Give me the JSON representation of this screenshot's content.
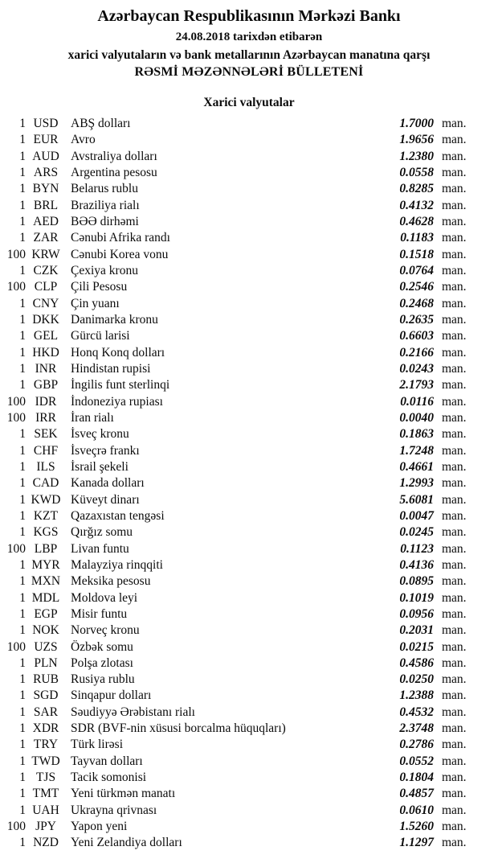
{
  "header": {
    "title": "Azərbaycan Respublikasının Mərkəzi Bankı",
    "date_line": "24.08.2018 tarixdən etibarən",
    "subtitle": "xarici valyutaların və bank metallarının Azərbaycan manatına qarşı",
    "bulletin_title": "RƏSMİ MƏZƏNNƏLƏRİ BÜLLETENİ"
  },
  "section": {
    "title": "Xarici valyutalar"
  },
  "unit_label": "man.",
  "rates": [
    {
      "nominal": "1",
      "code": "USD",
      "name": "ABŞ dolları",
      "rate": "1.7000"
    },
    {
      "nominal": "1",
      "code": "EUR",
      "name": "Avro",
      "rate": "1.9656"
    },
    {
      "nominal": "1",
      "code": "AUD",
      "name": "Avstraliya dolları",
      "rate": "1.2380"
    },
    {
      "nominal": "1",
      "code": "ARS",
      "name": "Argentina pesosu",
      "rate": "0.0558"
    },
    {
      "nominal": "1",
      "code": "BYN",
      "name": "Belarus rublu",
      "rate": "0.8285"
    },
    {
      "nominal": "1",
      "code": "BRL",
      "name": "Braziliya rialı",
      "rate": "0.4132"
    },
    {
      "nominal": "1",
      "code": "AED",
      "name": "BƏƏ dirhəmi",
      "rate": "0.4628"
    },
    {
      "nominal": "1",
      "code": "ZAR",
      "name": "Cənubi Afrika randı",
      "rate": "0.1183"
    },
    {
      "nominal": "100",
      "code": "KRW",
      "name": "Cənubi Korea vonu",
      "rate": "0.1518"
    },
    {
      "nominal": "1",
      "code": "CZK",
      "name": "Çexiya kronu",
      "rate": "0.0764"
    },
    {
      "nominal": "100",
      "code": "CLP",
      "name": "Çili Pesosu",
      "rate": "0.2546"
    },
    {
      "nominal": "1",
      "code": "CNY",
      "name": "Çin yuanı",
      "rate": "0.2468"
    },
    {
      "nominal": "1",
      "code": "DKK",
      "name": "Danimarka kronu",
      "rate": "0.2635"
    },
    {
      "nominal": "1",
      "code": "GEL",
      "name": "Gürcü larisi",
      "rate": "0.6603"
    },
    {
      "nominal": "1",
      "code": "HKD",
      "name": "Honq Konq dolları",
      "rate": "0.2166"
    },
    {
      "nominal": "1",
      "code": "INR",
      "name": "Hindistan rupisi",
      "rate": "0.0243"
    },
    {
      "nominal": "1",
      "code": "GBP",
      "name": "İngilis funt sterlinqi",
      "rate": "2.1793"
    },
    {
      "nominal": "100",
      "code": "IDR",
      "name": "İndoneziya rupiası",
      "rate": "0.0116"
    },
    {
      "nominal": "100",
      "code": "IRR",
      "name": "İran rialı",
      "rate": "0.0040"
    },
    {
      "nominal": "1",
      "code": "SEK",
      "name": "İsveç kronu",
      "rate": "0.1863"
    },
    {
      "nominal": "1",
      "code": "CHF",
      "name": "İsveçrə frankı",
      "rate": "1.7248"
    },
    {
      "nominal": "1",
      "code": "ILS",
      "name": "İsrail şekeli",
      "rate": "0.4661"
    },
    {
      "nominal": "1",
      "code": "CAD",
      "name": "Kanada dolları",
      "rate": "1.2993"
    },
    {
      "nominal": "1",
      "code": "KWD",
      "name": "Küveyt dinarı",
      "rate": "5.6081"
    },
    {
      "nominal": "1",
      "code": "KZT",
      "name": "Qazaxıstan tengəsi",
      "rate": "0.0047"
    },
    {
      "nominal": "1",
      "code": "KGS",
      "name": "Qırğız somu",
      "rate": "0.0245"
    },
    {
      "nominal": "100",
      "code": "LBP",
      "name": "Livan funtu",
      "rate": "0.1123"
    },
    {
      "nominal": "1",
      "code": "MYR",
      "name": "Malayziya rinqqiti",
      "rate": "0.4136"
    },
    {
      "nominal": "1",
      "code": "MXN",
      "name": "Meksika pesosu",
      "rate": "0.0895"
    },
    {
      "nominal": "1",
      "code": "MDL",
      "name": "Moldova leyi",
      "rate": "0.1019"
    },
    {
      "nominal": "1",
      "code": "EGP",
      "name": "Misir funtu",
      "rate": "0.0956"
    },
    {
      "nominal": "1",
      "code": "NOK",
      "name": "Norveç kronu",
      "rate": "0.2031"
    },
    {
      "nominal": "100",
      "code": "UZS",
      "name": "Özbək somu",
      "rate": "0.0215"
    },
    {
      "nominal": "1",
      "code": "PLN",
      "name": "Polşa zlotası",
      "rate": "0.4586"
    },
    {
      "nominal": "1",
      "code": "RUB",
      "name": "Rusiya rublu",
      "rate": "0.0250"
    },
    {
      "nominal": "1",
      "code": "SGD",
      "name": "Sinqapur dolları",
      "rate": "1.2388"
    },
    {
      "nominal": "1",
      "code": "SAR",
      "name": "Səudiyyə Ərəbistanı rialı",
      "rate": "0.4532"
    },
    {
      "nominal": "1",
      "code": "XDR",
      "name": "SDR (BVF-nin xüsusi borcalma hüquqları)",
      "rate": "2.3748"
    },
    {
      "nominal": "1",
      "code": "TRY",
      "name": "Türk lirəsi",
      "rate": "0.2786"
    },
    {
      "nominal": "1",
      "code": "TWD",
      "name": "Tayvan dolları",
      "rate": "0.0552"
    },
    {
      "nominal": "1",
      "code": "TJS",
      "name": "Tacik somonisi",
      "rate": "0.1804"
    },
    {
      "nominal": "1",
      "code": "TMT",
      "name": "Yeni türkmən manatı",
      "rate": "0.4857"
    },
    {
      "nominal": "1",
      "code": "UAH",
      "name": "Ukrayna qrivnası",
      "rate": "0.0610"
    },
    {
      "nominal": "100",
      "code": "JPY",
      "name": "Yapon yeni",
      "rate": "1.5260"
    },
    {
      "nominal": "1",
      "code": "NZD",
      "name": "Yeni Zelandiya dolları",
      "rate": "1.1297"
    }
  ]
}
